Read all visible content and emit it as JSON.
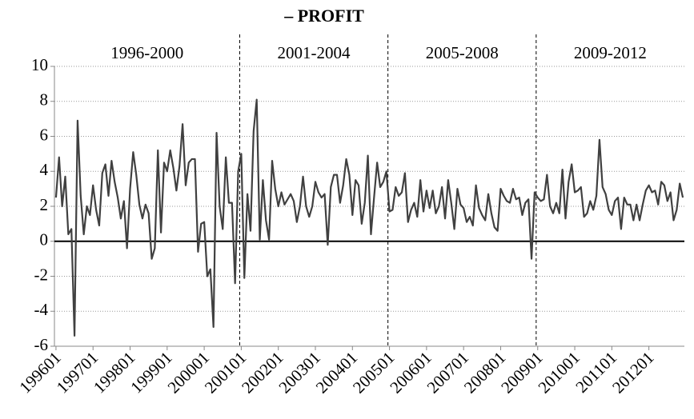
{
  "chart_data": {
    "type": "line",
    "title": "– PROFIT",
    "categories": [
      "199601",
      null,
      null,
      null,
      null,
      null,
      null,
      null,
      null,
      null,
      null,
      null,
      "199701",
      null,
      null,
      null,
      null,
      null,
      null,
      null,
      null,
      null,
      null,
      null,
      "199801",
      null,
      null,
      null,
      null,
      null,
      null,
      null,
      null,
      null,
      null,
      null,
      "199901",
      null,
      null,
      null,
      null,
      null,
      null,
      null,
      null,
      null,
      null,
      null,
      "200001",
      null,
      null,
      null,
      null,
      null,
      null,
      null,
      null,
      null,
      null,
      null,
      "200101",
      null,
      null,
      null,
      null,
      null,
      null,
      null,
      null,
      null,
      null,
      null,
      "200201",
      null,
      null,
      null,
      null,
      null,
      null,
      null,
      null,
      null,
      null,
      null,
      "200301",
      null,
      null,
      null,
      null,
      null,
      null,
      null,
      null,
      null,
      null,
      null,
      "200401",
      null,
      null,
      null,
      null,
      null,
      null,
      null,
      null,
      null,
      null,
      null,
      "200501",
      null,
      null,
      null,
      null,
      null,
      null,
      null,
      null,
      null,
      null,
      null,
      "200601",
      null,
      null,
      null,
      null,
      null,
      null,
      null,
      null,
      null,
      null,
      null,
      "200701",
      null,
      null,
      null,
      null,
      null,
      null,
      null,
      null,
      null,
      null,
      null,
      "200801",
      null,
      null,
      null,
      null,
      null,
      null,
      null,
      null,
      null,
      null,
      null,
      "200901",
      null,
      null,
      null,
      null,
      null,
      null,
      null,
      null,
      null,
      null,
      null,
      "201001",
      null,
      null,
      null,
      null,
      null,
      null,
      null,
      null,
      null,
      null,
      null,
      "201101",
      null,
      null,
      null,
      null,
      null,
      null,
      null,
      null,
      null,
      null,
      null,
      "201201",
      null,
      null,
      null,
      null,
      null,
      null,
      null,
      null,
      null,
      null,
      null
    ],
    "series": [
      {
        "color": "#404040",
        "values": [
          2.5,
          4.8,
          2.0,
          3.7,
          0.4,
          0.7,
          -5.4,
          6.9,
          2.6,
          0.4,
          2.0,
          1.5,
          3.2,
          1.8,
          0.9,
          3.9,
          4.4,
          2.6,
          4.6,
          3.4,
          2.5,
          1.3,
          2.3,
          -0.4,
          3.0,
          5.1,
          3.8,
          2.1,
          1.3,
          2.1,
          1.6,
          -1.0,
          -0.4,
          5.2,
          0.5,
          4.5,
          4.0,
          5.2,
          4.2,
          2.9,
          4.3,
          6.7,
          3.2,
          4.5,
          4.7,
          4.7,
          -0.6,
          1.0,
          1.1,
          -2.0,
          -1.6,
          -4.9,
          6.2,
          2.0,
          0.7,
          4.8,
          2.2,
          2.2,
          -2.4,
          4.0,
          5.0,
          -2.1,
          2.7,
          0.6,
          6.3,
          8.1,
          0.1,
          3.5,
          1.2,
          0.1,
          4.6,
          3.0,
          2.0,
          2.8,
          2.1,
          2.4,
          2.7,
          2.3,
          1.1,
          2.0,
          3.7,
          2.0,
          1.4,
          2.0,
          3.4,
          2.8,
          2.5,
          2.7,
          -0.2,
          3.1,
          3.8,
          3.8,
          2.2,
          3.2,
          4.7,
          3.8,
          1.5,
          3.5,
          3.2,
          1.0,
          2.2,
          4.9,
          0.4,
          2.5,
          4.5,
          3.1,
          3.4,
          4.0,
          1.7,
          1.8,
          3.1,
          2.6,
          2.8,
          3.9,
          1.1,
          1.8,
          2.2,
          1.4,
          3.5,
          1.7,
          2.9,
          1.9,
          2.9,
          1.6,
          2.0,
          3.1,
          1.3,
          3.5,
          2.2,
          0.7,
          3.0,
          2.1,
          1.9,
          1.1,
          1.4,
          0.9,
          3.2,
          1.9,
          1.5,
          1.2,
          2.7,
          1.6,
          0.8,
          0.6,
          3.0,
          2.6,
          2.3,
          2.2,
          3.0,
          2.4,
          2.5,
          1.5,
          2.2,
          2.4,
          -1.0,
          2.8,
          2.5,
          2.3,
          2.4,
          3.8,
          2.0,
          1.6,
          2.2,
          1.6,
          4.1,
          1.3,
          3.4,
          4.4,
          2.8,
          2.9,
          3.1,
          1.4,
          1.6,
          2.3,
          1.8,
          2.6,
          5.8,
          3.1,
          2.7,
          1.8,
          1.5,
          2.3,
          2.5,
          0.7,
          2.5,
          2.1,
          2.1,
          1.2,
          2.1,
          1.2,
          2.1,
          2.9,
          3.2,
          2.8,
          2.9,
          2.1,
          3.4,
          3.2,
          2.3,
          2.8,
          1.2,
          1.8,
          3.3,
          2.5
        ]
      }
    ],
    "annotations": [
      "1996-2000",
      "2001-2004",
      "2005-2008",
      "2009-2012"
    ],
    "ylim": [
      -6,
      10
    ],
    "yticks": [
      -6,
      -4,
      -2,
      0,
      2,
      4,
      6,
      8,
      10
    ],
    "grid": true
  }
}
